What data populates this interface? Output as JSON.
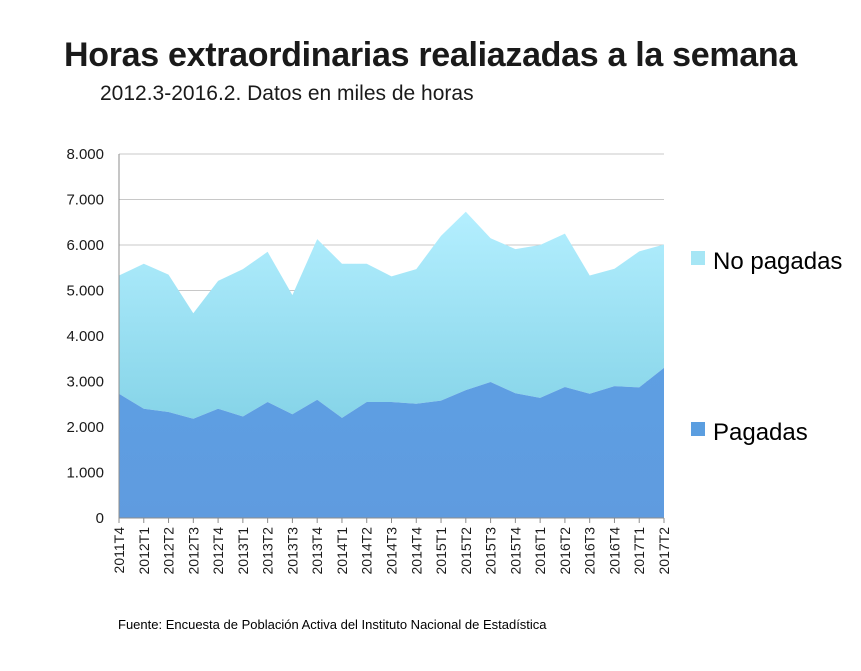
{
  "chart_data": {
    "type": "area",
    "stacked": true,
    "title": "Horas extraordinarias realiazadas a la semana",
    "subtitle": "2012.3-2016.2. Datos en miles de horas",
    "source": "Fuente: Encuesta de Población Activa del Instituto Nacional de Estadística",
    "ylim": [
      0,
      8000
    ],
    "yticks": [
      "0",
      "1.000",
      "2.000",
      "3.000",
      "4.000",
      "5.000",
      "6.000",
      "7.000",
      "8.000"
    ],
    "grid": true,
    "legend_position": "right",
    "categories": [
      "2011T4",
      "2012T1",
      "2012T2",
      "2012T3",
      "2012T4",
      "2013T1",
      "2013T2",
      "2013T3",
      "2013T4",
      "2014T1",
      "2014T2",
      "2014T3",
      "2014T4",
      "2015T1",
      "2015T2",
      "2015T3",
      "2015T4",
      "2016T1",
      "2016T2",
      "2016T3",
      "2016T4",
      "2017T1",
      "2017T2"
    ],
    "series": [
      {
        "name": "Pagadas",
        "color": "#5b9ee0",
        "values": [
          2730,
          2400,
          2330,
          2180,
          2400,
          2230,
          2550,
          2280,
          2600,
          2200,
          2550,
          2550,
          2510,
          2580,
          2810,
          2990,
          2740,
          2640,
          2880,
          2730,
          2900,
          2870,
          3300
        ]
      },
      {
        "name": "No pagadas",
        "color": "#a6e6f5",
        "values": [
          2600,
          3190,
          3020,
          2320,
          2810,
          3240,
          3300,
          2620,
          3530,
          3390,
          3040,
          2760,
          2960,
          3620,
          3920,
          3160,
          3170,
          3360,
          3370,
          2600,
          2580,
          2990,
          2710
        ]
      }
    ]
  }
}
